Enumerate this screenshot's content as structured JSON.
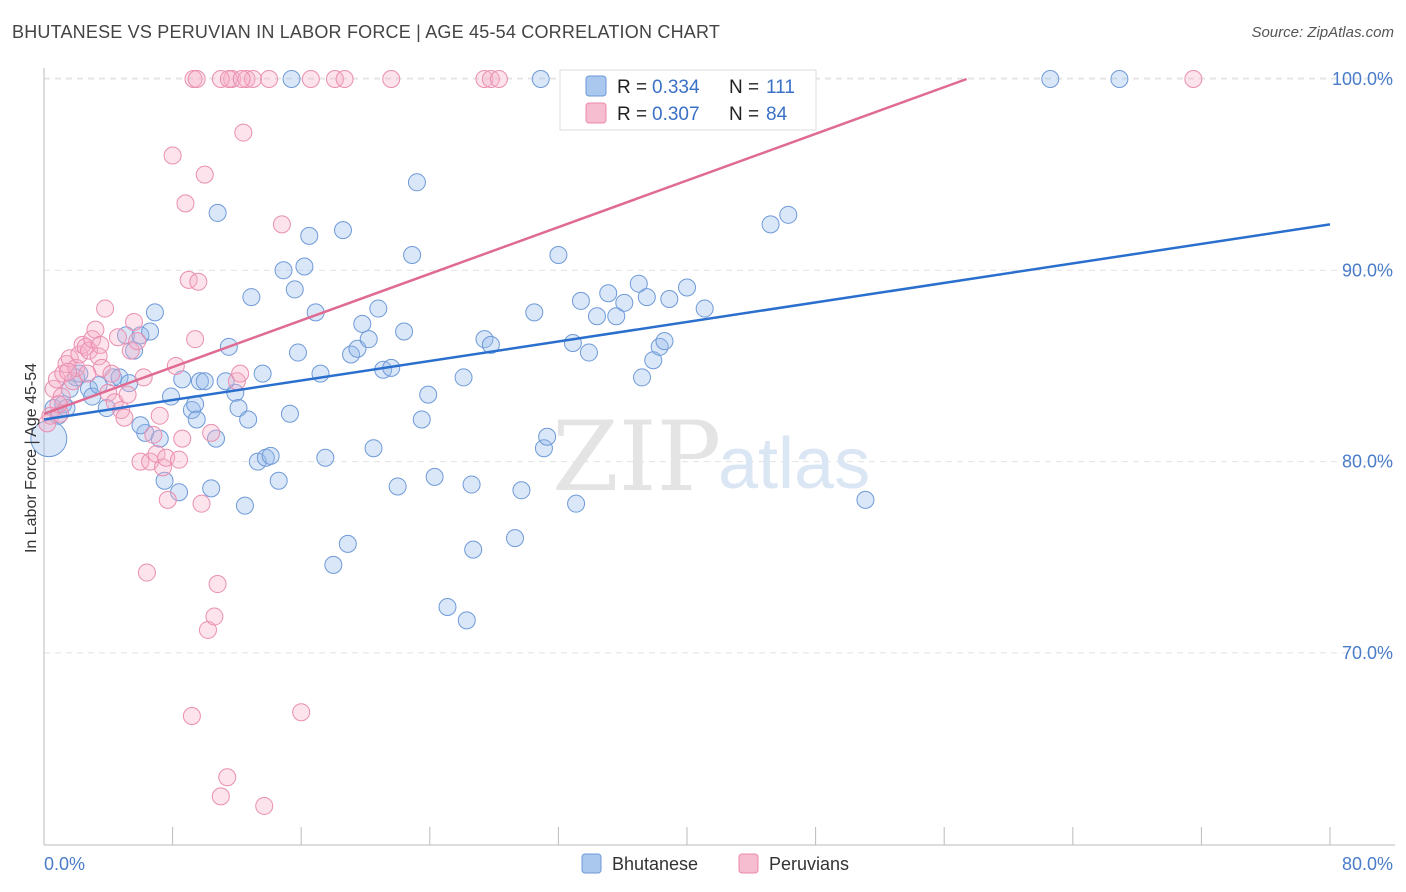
{
  "header": {
    "title": "BHUTANESE VS PERUVIAN IN LABOR FORCE | AGE 45-54 CORRELATION CHART",
    "source": "Source: ZipAtlas.com"
  },
  "watermark": {
    "zip": "ZIP",
    "atlas": "atlas"
  },
  "legend": {
    "r_label": "R =",
    "n_label": "N =",
    "rows": [
      {
        "r": "0.334",
        "n": "111",
        "color": "#aac7ee",
        "stroke": "#6f9ad8"
      },
      {
        "r": "0.307",
        "n": "84",
        "color": "#f6bcd0",
        "stroke": "#e88aab"
      }
    ]
  },
  "bottom_legend": [
    "Bhutanese",
    "Peruvians"
  ],
  "chart_data": {
    "type": "scatter",
    "title": "BHUTANESE VS PERUVIAN IN LABOR FORCE | AGE 45-54 CORRELATION CHART",
    "xlabel": "",
    "ylabel": "In Labor Force | Age 45-54",
    "xlim": [
      0,
      80
    ],
    "ylim": [
      60.5,
      101
    ],
    "x_tick_labels": [
      "0.0%",
      "80.0%"
    ],
    "y_ticks": [
      70,
      80,
      90,
      100
    ],
    "y_tick_labels": [
      "70.0%",
      "80.0%",
      "90.0%",
      "100.0%"
    ],
    "grid": "horizontal dashed",
    "colors": {
      "bhutanese": "#5b8fd9",
      "peruvians": "#ec8aaa",
      "bhutanese_line": "#2a6fcd",
      "peruvians_line": "#e06b92"
    },
    "series": [
      {
        "name": "Bhutanese",
        "trend": {
          "x0": 0,
          "y0": 82.2,
          "x1": 80,
          "y1": 92.4
        },
        "points": [
          [
            0.3,
            81.2
          ],
          [
            0.6,
            82.8
          ],
          [
            0.9,
            82.4
          ],
          [
            1.2,
            83.0
          ],
          [
            1.4,
            82.8
          ],
          [
            1.6,
            83.8
          ],
          [
            2.0,
            84.4
          ],
          [
            2.2,
            84.6
          ],
          [
            2.8,
            83.8
          ],
          [
            3.0,
            83.4
          ],
          [
            3.4,
            84.0
          ],
          [
            3.9,
            82.8
          ],
          [
            4.3,
            84.4
          ],
          [
            4.7,
            84.4
          ],
          [
            5.1,
            86.6
          ],
          [
            5.3,
            84.1
          ],
          [
            5.6,
            85.8
          ],
          [
            6.0,
            86.6
          ],
          [
            6.3,
            81.5
          ],
          [
            6.6,
            86.8
          ],
          [
            6.9,
            87.8
          ],
          [
            7.2,
            81.2
          ],
          [
            7.5,
            79.0
          ],
          [
            7.9,
            83.4
          ],
          [
            8.4,
            78.4
          ],
          [
            8.6,
            84.3
          ],
          [
            9.2,
            82.7
          ],
          [
            9.4,
            83.0
          ],
          [
            9.7,
            84.2
          ],
          [
            10.0,
            84.2
          ],
          [
            10.4,
            78.6
          ],
          [
            10.7,
            81.2
          ],
          [
            10.8,
            93.0
          ],
          [
            11.5,
            86.0
          ],
          [
            11.9,
            83.6
          ],
          [
            12.1,
            82.8
          ],
          [
            12.5,
            77.7
          ],
          [
            12.7,
            82.2
          ],
          [
            12.9,
            88.6
          ],
          [
            13.3,
            80.0
          ],
          [
            13.6,
            84.6
          ],
          [
            13.8,
            80.2
          ],
          [
            14.1,
            80.3
          ],
          [
            14.6,
            79.0
          ],
          [
            14.9,
            90.0
          ],
          [
            15.3,
            82.5
          ],
          [
            15.6,
            89.0
          ],
          [
            15.8,
            85.7
          ],
          [
            16.2,
            90.2
          ],
          [
            16.5,
            91.8
          ],
          [
            16.9,
            87.8
          ],
          [
            17.2,
            84.6
          ],
          [
            17.5,
            80.2
          ],
          [
            18.0,
            74.6
          ],
          [
            18.6,
            92.1
          ],
          [
            18.9,
            75.7
          ],
          [
            19.1,
            85.6
          ],
          [
            19.5,
            85.9
          ],
          [
            19.8,
            87.2
          ],
          [
            20.2,
            86.4
          ],
          [
            20.5,
            80.7
          ],
          [
            20.8,
            88.0
          ],
          [
            21.1,
            84.8
          ],
          [
            21.6,
            84.9
          ],
          [
            22.0,
            78.7
          ],
          [
            22.4,
            86.8
          ],
          [
            22.9,
            90.8
          ],
          [
            23.2,
            94.6
          ],
          [
            23.5,
            82.2
          ],
          [
            23.9,
            83.5
          ],
          [
            24.3,
            79.2
          ],
          [
            25.1,
            72.4
          ],
          [
            26.1,
            84.4
          ],
          [
            26.3,
            71.7
          ],
          [
            26.6,
            78.8
          ],
          [
            26.7,
            75.4
          ],
          [
            27.4,
            86.4
          ],
          [
            27.8,
            86.1
          ],
          [
            29.3,
            76.0
          ],
          [
            29.7,
            78.5
          ],
          [
            30.5,
            87.8
          ],
          [
            30.9,
            100.0
          ],
          [
            31.1,
            80.7
          ],
          [
            31.3,
            81.3
          ],
          [
            32.0,
            90.8
          ],
          [
            32.9,
            86.2
          ],
          [
            33.1,
            77.8
          ],
          [
            33.4,
            88.4
          ],
          [
            33.9,
            85.7
          ],
          [
            34.4,
            87.6
          ],
          [
            35.1,
            88.8
          ],
          [
            35.6,
            87.6
          ],
          [
            36.1,
            88.3
          ],
          [
            37.0,
            89.3
          ],
          [
            37.2,
            84.4
          ],
          [
            37.5,
            88.6
          ],
          [
            37.9,
            85.3
          ],
          [
            38.3,
            86.0
          ],
          [
            38.6,
            86.3
          ],
          [
            38.9,
            88.5
          ],
          [
            40.0,
            89.1
          ],
          [
            41.1,
            88.0
          ],
          [
            45.2,
            92.4
          ],
          [
            46.3,
            92.9
          ],
          [
            51.1,
            78.0
          ],
          [
            62.6,
            100.0
          ],
          [
            66.9,
            100.0
          ],
          [
            15.4,
            100.0
          ],
          [
            9.5,
            82.2
          ],
          [
            6.0,
            81.9
          ],
          [
            11.3,
            84.2
          ]
        ]
      },
      {
        "name": "Peruvians",
        "trend": {
          "x0": 0,
          "y0": 82.5,
          "x1": 57.4,
          "y1": 100.0
        },
        "points": [
          [
            0.2,
            82.0
          ],
          [
            0.4,
            82.4
          ],
          [
            0.6,
            83.8
          ],
          [
            0.8,
            84.3
          ],
          [
            1.0,
            82.5
          ],
          [
            1.2,
            84.6
          ],
          [
            1.4,
            85.1
          ],
          [
            1.6,
            85.4
          ],
          [
            1.8,
            84.2
          ],
          [
            2.0,
            84.9
          ],
          [
            2.2,
            85.6
          ],
          [
            2.4,
            86.1
          ],
          [
            2.6,
            86.0
          ],
          [
            2.8,
            85.8
          ],
          [
            3.0,
            86.4
          ],
          [
            3.2,
            86.9
          ],
          [
            3.4,
            85.5
          ],
          [
            3.6,
            84.9
          ],
          [
            3.8,
            88.0
          ],
          [
            4.0,
            83.6
          ],
          [
            4.2,
            84.6
          ],
          [
            4.4,
            83.1
          ],
          [
            4.6,
            86.5
          ],
          [
            4.8,
            82.7
          ],
          [
            5.0,
            82.3
          ],
          [
            5.2,
            83.5
          ],
          [
            5.4,
            85.8
          ],
          [
            5.6,
            87.3
          ],
          [
            5.8,
            86.3
          ],
          [
            6.0,
            80.0
          ],
          [
            6.2,
            84.4
          ],
          [
            6.4,
            74.2
          ],
          [
            6.6,
            80.0
          ],
          [
            6.8,
            81.4
          ],
          [
            7.0,
            80.4
          ],
          [
            7.2,
            82.4
          ],
          [
            7.4,
            79.7
          ],
          [
            7.6,
            80.2
          ],
          [
            7.7,
            78.0
          ],
          [
            8.0,
            96.0
          ],
          [
            8.2,
            85.0
          ],
          [
            8.4,
            80.1
          ],
          [
            8.6,
            81.2
          ],
          [
            8.8,
            93.5
          ],
          [
            9.0,
            89.5
          ],
          [
            9.2,
            66.7
          ],
          [
            9.4,
            86.4
          ],
          [
            9.6,
            89.4
          ],
          [
            9.8,
            77.8
          ],
          [
            10.0,
            95.0
          ],
          [
            10.2,
            71.2
          ],
          [
            10.4,
            81.5
          ],
          [
            10.6,
            71.9
          ],
          [
            10.8,
            73.6
          ],
          [
            11.0,
            62.5
          ],
          [
            11.4,
            63.5
          ],
          [
            11.7,
            100.0
          ],
          [
            12.0,
            84.2
          ],
          [
            12.2,
            84.6
          ],
          [
            12.4,
            97.2
          ],
          [
            12.6,
            100.0
          ],
          [
            13.0,
            100.0
          ],
          [
            13.7,
            62.0
          ],
          [
            14.8,
            92.4
          ],
          [
            16.0,
            66.9
          ],
          [
            16.6,
            100.0
          ],
          [
            18.1,
            100.0
          ],
          [
            18.7,
            100.0
          ],
          [
            9.3,
            100.0
          ],
          [
            9.5,
            100.0
          ],
          [
            11.0,
            100.0
          ],
          [
            11.5,
            100.0
          ],
          [
            12.3,
            100.0
          ],
          [
            14.0,
            100.0
          ],
          [
            21.6,
            100.0
          ],
          [
            27.4,
            100.0
          ],
          [
            27.8,
            100.0
          ],
          [
            28.3,
            100.0
          ],
          [
            71.5,
            100.0
          ],
          [
            1.1,
            83.4
          ],
          [
            1.5,
            84.7
          ],
          [
            2.7,
            84.6
          ],
          [
            0.9,
            83.0
          ],
          [
            3.5,
            86.1
          ]
        ]
      }
    ]
  }
}
